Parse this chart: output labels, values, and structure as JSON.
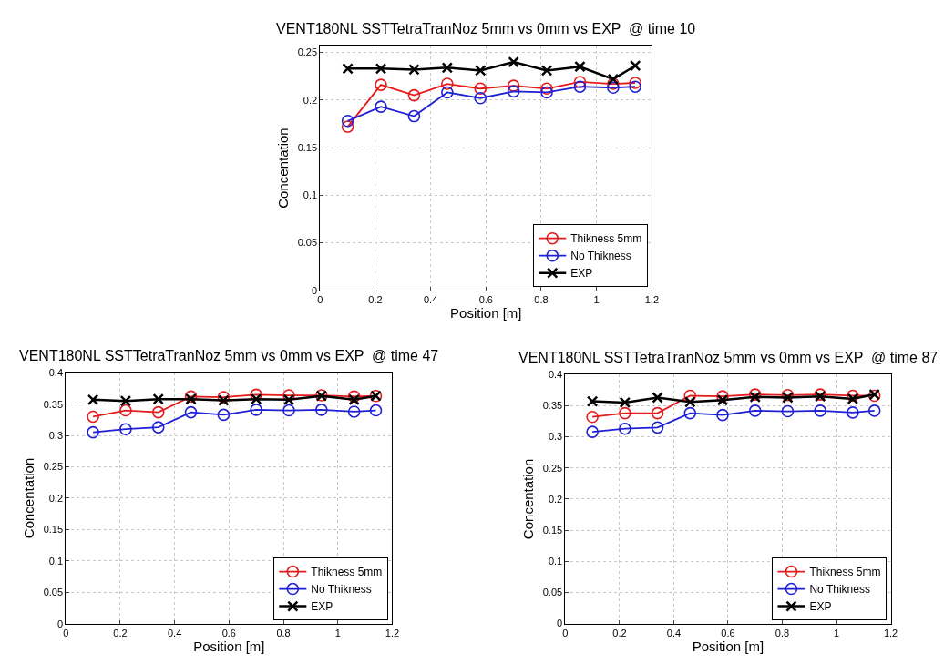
{
  "chart_data": [
    {
      "type": "line",
      "title": "VENT180NL SSTTetraTranNoz 5mm vs 0mm vs EXP  @ time 10",
      "xlabel": "Position [m]",
      "ylabel": "Concentation",
      "x": [
        0.1,
        0.22,
        0.34,
        0.46,
        0.58,
        0.7,
        0.82,
        0.94,
        1.06,
        1.14
      ],
      "xlim": [
        0,
        1.2
      ],
      "xticks": [
        0,
        0.2,
        0.4,
        0.6,
        0.8,
        1,
        1.2
      ],
      "ylim": [
        0,
        0.257
      ],
      "yticks": [
        0,
        0.05,
        0.1,
        0.15,
        0.2,
        0.25
      ],
      "grid": true,
      "legend": "bottom right",
      "line_style": "solid",
      "series": [
        {
          "name": "Thikness 5mm",
          "color": "#e41a1c",
          "marker": "circle",
          "values": [
            0.172,
            0.216,
            0.205,
            0.217,
            0.212,
            0.215,
            0.212,
            0.219,
            0.217,
            0.218
          ]
        },
        {
          "name": "No Thikness",
          "color": "#1f1fd6",
          "marker": "circle",
          "values": [
            0.178,
            0.193,
            0.183,
            0.208,
            0.202,
            0.209,
            0.208,
            0.214,
            0.213,
            0.214
          ]
        },
        {
          "name": "EXP",
          "color": "#000000",
          "marker": "cross",
          "values": [
            0.233,
            0.233,
            0.232,
            0.234,
            0.231,
            0.24,
            0.231,
            0.235,
            0.222,
            0.236
          ]
        }
      ]
    },
    {
      "type": "line",
      "title": "VENT180NL SSTTetraTranNoz 5mm vs 0mm vs EXP  @ time 47",
      "xlabel": "Position [m]",
      "ylabel": "Concentation",
      "x": [
        0.1,
        0.22,
        0.34,
        0.46,
        0.58,
        0.7,
        0.82,
        0.94,
        1.06,
        1.14
      ],
      "xlim": [
        0,
        1.2
      ],
      "xticks": [
        0,
        0.2,
        0.4,
        0.6,
        0.8,
        1,
        1.2
      ],
      "ylim": [
        0,
        0.4
      ],
      "yticks": [
        0,
        0.05,
        0.1,
        0.15,
        0.2,
        0.25,
        0.3,
        0.35,
        0.4
      ],
      "grid": true,
      "legend": "bottom right",
      "line_style": "solid",
      "series": [
        {
          "name": "Thikness 5mm",
          "color": "#e41a1c",
          "marker": "circle",
          "values": [
            0.33,
            0.34,
            0.337,
            0.362,
            0.361,
            0.365,
            0.364,
            0.364,
            0.362,
            0.363
          ]
        },
        {
          "name": "No Thikness",
          "color": "#1f1fd6",
          "marker": "circle",
          "values": [
            0.305,
            0.31,
            0.313,
            0.337,
            0.333,
            0.341,
            0.34,
            0.341,
            0.338,
            0.34
          ]
        },
        {
          "name": "EXP",
          "color": "#000000",
          "marker": "cross",
          "values": [
            0.357,
            0.355,
            0.358,
            0.358,
            0.356,
            0.358,
            0.357,
            0.363,
            0.357,
            0.363
          ]
        }
      ]
    },
    {
      "type": "line",
      "title": "VENT180NL SSTTetraTranNoz 5mm vs 0mm vs EXP  @ time 87",
      "xlabel": "Position [m]",
      "ylabel": "Concentation",
      "x": [
        0.1,
        0.22,
        0.34,
        0.46,
        0.58,
        0.7,
        0.82,
        0.94,
        1.06,
        1.14
      ],
      "xlim": [
        0,
        1.2
      ],
      "xticks": [
        0,
        0.2,
        0.4,
        0.6,
        0.8,
        1,
        1.2
      ],
      "ylim": [
        0,
        0.4
      ],
      "yticks": [
        0,
        0.05,
        0.1,
        0.15,
        0.2,
        0.25,
        0.3,
        0.35,
        0.4
      ],
      "grid": true,
      "legend": "bottom right",
      "line_style": "solid",
      "series": [
        {
          "name": "Thikness 5mm",
          "color": "#e41a1c",
          "marker": "circle",
          "values": [
            0.332,
            0.338,
            0.338,
            0.366,
            0.365,
            0.368,
            0.367,
            0.368,
            0.366,
            0.366
          ]
        },
        {
          "name": "No Thikness",
          "color": "#1f1fd6",
          "marker": "circle",
          "values": [
            0.308,
            0.313,
            0.315,
            0.338,
            0.335,
            0.342,
            0.341,
            0.342,
            0.339,
            0.342
          ]
        },
        {
          "name": "EXP",
          "color": "#000000",
          "marker": "cross",
          "values": [
            0.357,
            0.355,
            0.363,
            0.356,
            0.359,
            0.364,
            0.363,
            0.365,
            0.361,
            0.368
          ]
        }
      ]
    }
  ]
}
